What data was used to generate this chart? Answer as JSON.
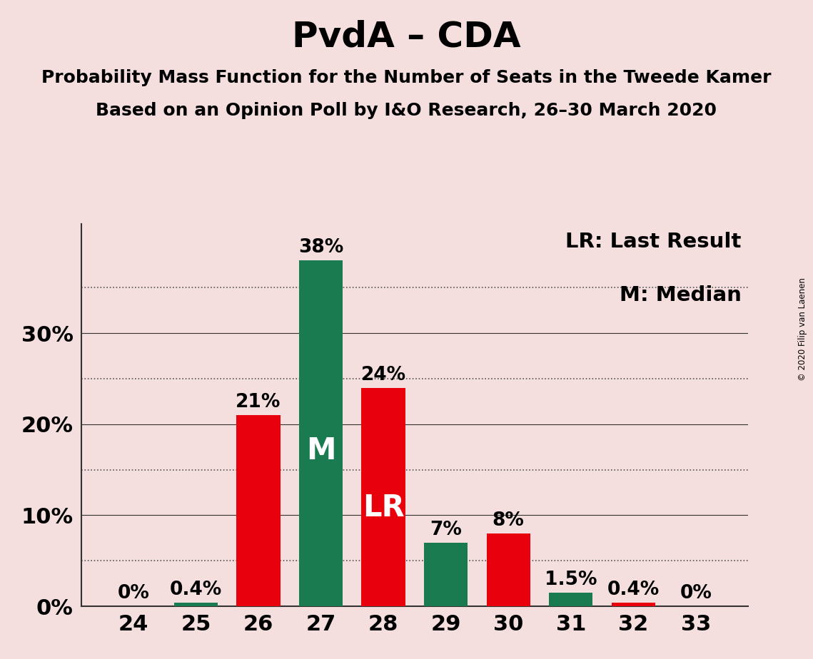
{
  "title": "PvdA – CDA",
  "subtitle1": "Probability Mass Function for the Number of Seats in the Tweede Kamer",
  "subtitle2": "Based on an Opinion Poll by I&O Research, 26–30 March 2020",
  "copyright": "© 2020 Filip van Laenen",
  "legend_lr": "LR: Last Result",
  "legend_m": "M: Median",
  "background_color": "#f5dede",
  "bar_color_green": "#1a7a50",
  "bar_color_red": "#e8000d",
  "seats": [
    24,
    25,
    26,
    27,
    28,
    29,
    30,
    31,
    32,
    33
  ],
  "values": [
    0.0,
    0.4,
    21.0,
    38.0,
    24.0,
    7.0,
    8.0,
    1.5,
    0.4,
    0.0
  ],
  "colors": [
    "red",
    "green",
    "red",
    "green",
    "red",
    "green",
    "red",
    "green",
    "red",
    "red"
  ],
  "labels": [
    "0%",
    "0.4%",
    "21%",
    "38%",
    "24%",
    "7%",
    "8%",
    "1.5%",
    "0.4%",
    "0%"
  ],
  "ylim": [
    0,
    42
  ],
  "solid_grid": [
    10,
    20,
    30
  ],
  "dotted_grid": [
    5,
    15,
    25,
    35
  ],
  "ytick_positions": [
    0,
    10,
    20,
    30
  ],
  "ytick_labels": [
    "0%",
    "10%",
    "20%",
    "30%"
  ],
  "title_fontsize": 36,
  "subtitle_fontsize": 18,
  "axis_tick_fontsize": 22,
  "bar_label_fontsize": 19,
  "legend_fontsize": 21,
  "inside_label_fontsize": 30,
  "median_seat": 27,
  "lr_seat": 28,
  "median_label": "M",
  "lr_label": "LR"
}
